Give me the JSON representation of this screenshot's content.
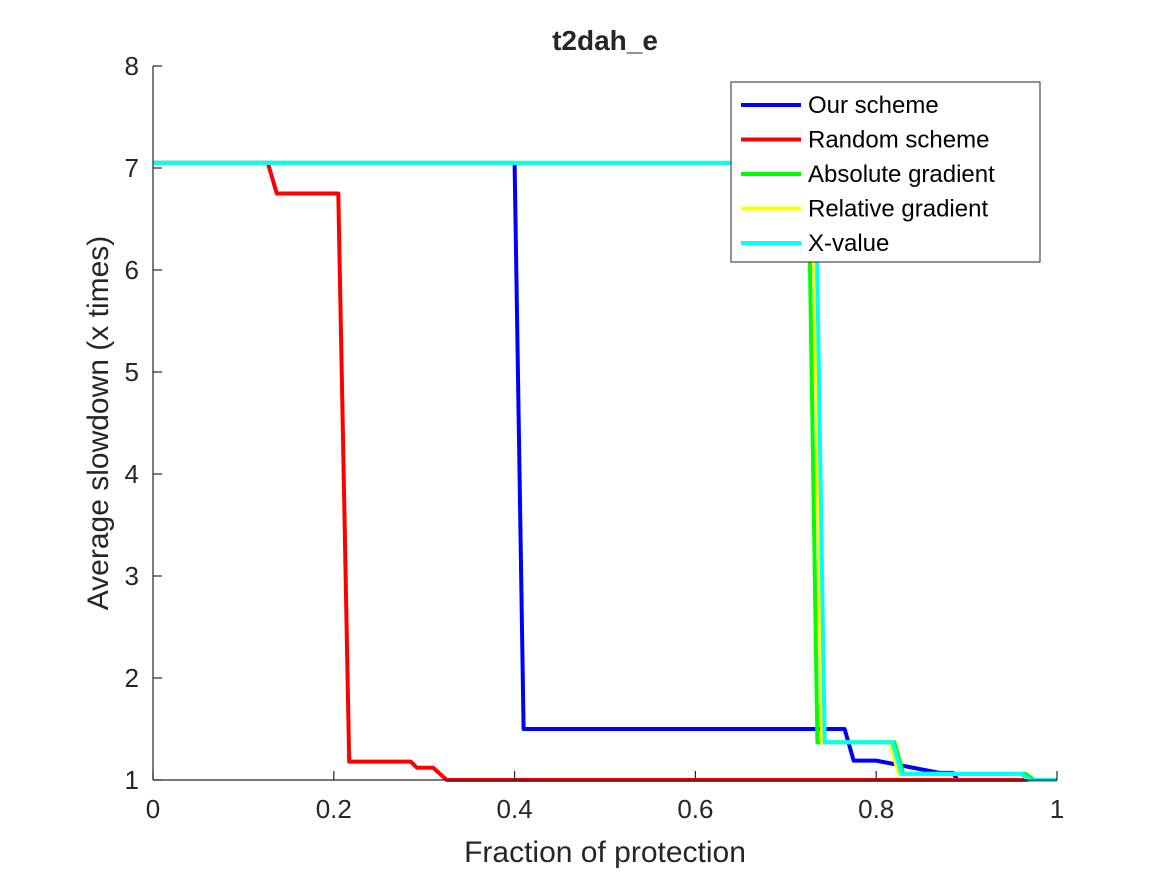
{
  "chart_data": {
    "type": "line",
    "title": "t2dah_e",
    "xlabel": "Fraction of protection",
    "ylabel": "Average slowdown (x times)",
    "xlim": [
      0,
      1
    ],
    "ylim": [
      1,
      8
    ],
    "xticks": [
      0,
      0.2,
      0.4,
      0.6,
      0.8,
      1
    ],
    "xtick_labels": [
      "0",
      "0.2",
      "0.4",
      "0.6",
      "0.8",
      "1"
    ],
    "yticks": [
      1,
      2,
      3,
      4,
      5,
      6,
      7,
      8
    ],
    "ytick_labels": [
      "1",
      "2",
      "3",
      "4",
      "5",
      "6",
      "7",
      "8"
    ],
    "grid": false,
    "legend_position": "top-right",
    "series": [
      {
        "name": "Our scheme",
        "color": "#0000ff",
        "points": [
          [
            0,
            7.05
          ],
          [
            0.4,
            7.05
          ],
          [
            0.41,
            1.5
          ],
          [
            0.765,
            1.5
          ],
          [
            0.775,
            1.19
          ],
          [
            0.8,
            1.19
          ],
          [
            0.87,
            1.07
          ],
          [
            0.885,
            1.07
          ],
          [
            0.89,
            1.0
          ],
          [
            1.0,
            1.0
          ]
        ]
      },
      {
        "name": "Random scheme",
        "color": "#ff0000",
        "points": [
          [
            0,
            7.05
          ],
          [
            0.127,
            7.05
          ],
          [
            0.137,
            6.75
          ],
          [
            0.205,
            6.75
          ],
          [
            0.217,
            1.18
          ],
          [
            0.285,
            1.18
          ],
          [
            0.292,
            1.12
          ],
          [
            0.31,
            1.12
          ],
          [
            0.325,
            1.0
          ],
          [
            1.0,
            1.0
          ]
        ]
      },
      {
        "name": "Absolute gradient",
        "color": "#00ff00",
        "points": [
          [
            0,
            7.05
          ],
          [
            0.725,
            7.05
          ],
          [
            0.735,
            1.37
          ],
          [
            0.82,
            1.37
          ],
          [
            0.83,
            1.06
          ],
          [
            0.965,
            1.06
          ],
          [
            0.975,
            1.0
          ],
          [
            1.0,
            1.0
          ]
        ]
      },
      {
        "name": "Relative gradient",
        "color": "#ffff00",
        "points": [
          [
            0,
            7.05
          ],
          [
            0.73,
            7.05
          ],
          [
            0.74,
            1.37
          ],
          [
            0.815,
            1.37
          ],
          [
            0.825,
            1.06
          ],
          [
            0.96,
            1.06
          ],
          [
            0.97,
            1.0
          ],
          [
            1.0,
            1.0
          ]
        ]
      },
      {
        "name": "X-value",
        "color": "#00ffff",
        "points": [
          [
            0,
            7.05
          ],
          [
            0.733,
            7.05
          ],
          [
            0.743,
            1.37
          ],
          [
            0.818,
            1.37
          ],
          [
            0.828,
            1.06
          ],
          [
            0.96,
            1.06
          ],
          [
            0.97,
            1.0
          ],
          [
            1.0,
            1.0
          ]
        ]
      }
    ]
  }
}
